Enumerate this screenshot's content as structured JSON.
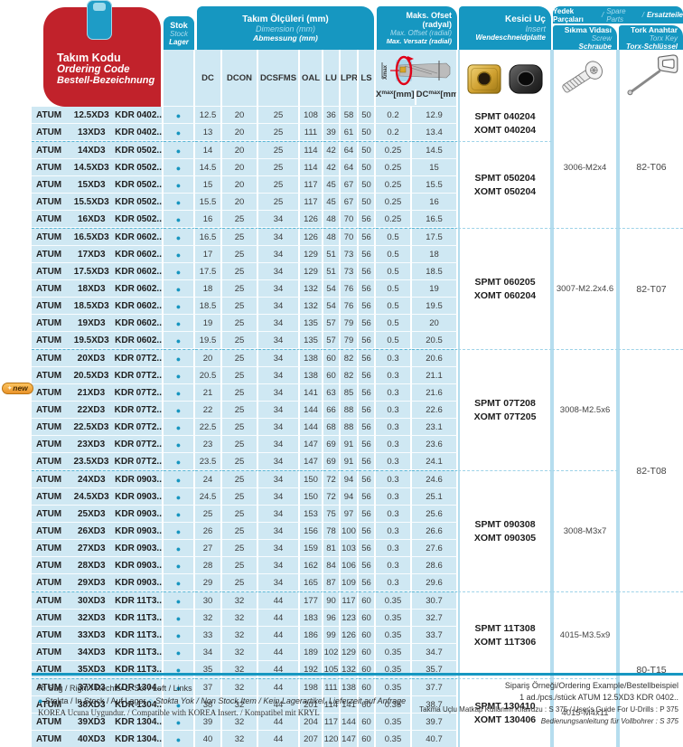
{
  "colors": {
    "teal": "#1697c1",
    "red": "#c1222b",
    "row_blue": "#cfe8f3",
    "dashed_separator": "#58b6d5",
    "insert_gold": "#c89b2a",
    "insert_black": "#2b2b2b",
    "badge_orange": "#e9932a"
  },
  "icons": {
    "stock_dot": "●",
    "in_stock_dot": "●",
    "non_stock_dot": "○",
    "new_spark": "✦"
  },
  "header": {
    "ordering_code": {
      "tr": "Takım Kodu",
      "en": "Ordering Code",
      "de": "Bestell-Bezeichnung"
    },
    "stock": {
      "tr": "Stok",
      "en": "Stock",
      "de": "Lager"
    },
    "dimensions": {
      "tr": "Takım Ölçüleri (mm)",
      "en": "Dimension (mm)",
      "de": "Abmessung (mm)"
    },
    "offset": {
      "tr": "Maks. Ofset (radyal)",
      "en": "Max. Offset (radial)",
      "de": "Max. Versatz (radial)"
    },
    "insert": {
      "tr": "Kesici Uç",
      "en": "Insert",
      "de": "Wendeschneidplatte"
    },
    "spare_parts": {
      "tr": "Yedek Parçaları",
      "sep1": "/",
      "en": "Spare Parts",
      "sep2": "/",
      "de": "Ersatzteile"
    },
    "screw": {
      "tr": "Sıkma Vidası",
      "en": "Screw",
      "de": "Schraube"
    },
    "torx": {
      "tr": "Tork Anahtar",
      "en": "Torx Key",
      "de": "Torx-Schlüssel"
    },
    "columns": [
      "DC",
      "DCON",
      "DCSFMS",
      "OAL",
      "LU",
      "LPR",
      "LS"
    ],
    "xmax": {
      "base": "X",
      "sub": "max",
      "unit": "[mm]"
    },
    "dcmax": {
      "base": "DC",
      "sub": "max",
      "unit": "[mm]"
    },
    "diagram_label": "Xmax"
  },
  "new_badge": {
    "label": "new",
    "row": 19
  },
  "rows": [
    [
      "ATUM",
      "12.5XD3",
      "KDR",
      "0402..",
      "12.5",
      "20",
      "25",
      "108",
      "36",
      "58",
      "50",
      "0.2",
      "12.9"
    ],
    [
      "ATUM",
      "13XD3",
      "KDR",
      "0402..",
      "13",
      "20",
      "25",
      "111",
      "39",
      "61",
      "50",
      "0.2",
      "13.4"
    ],
    [
      "ATUM",
      "14XD3",
      "KDR",
      "0502..",
      "14",
      "20",
      "25",
      "114",
      "42",
      "64",
      "50",
      "0.25",
      "14.5"
    ],
    [
      "ATUM",
      "14.5XD3",
      "KDR",
      "0502..",
      "14.5",
      "20",
      "25",
      "114",
      "42",
      "64",
      "50",
      "0.25",
      "15"
    ],
    [
      "ATUM",
      "15XD3",
      "KDR",
      "0502..",
      "15",
      "20",
      "25",
      "117",
      "45",
      "67",
      "50",
      "0.25",
      "15.5"
    ],
    [
      "ATUM",
      "15.5XD3",
      "KDR",
      "0502..",
      "15.5",
      "20",
      "25",
      "117",
      "45",
      "67",
      "50",
      "0.25",
      "16"
    ],
    [
      "ATUM",
      "16XD3",
      "KDR",
      "0502..",
      "16",
      "25",
      "34",
      "126",
      "48",
      "70",
      "56",
      "0.25",
      "16.5"
    ],
    [
      "ATUM",
      "16.5XD3",
      "KDR",
      "0602..",
      "16.5",
      "25",
      "34",
      "126",
      "48",
      "70",
      "56",
      "0.5",
      "17.5"
    ],
    [
      "ATUM",
      "17XD3",
      "KDR",
      "0602..",
      "17",
      "25",
      "34",
      "129",
      "51",
      "73",
      "56",
      "0.5",
      "18"
    ],
    [
      "ATUM",
      "17.5XD3",
      "KDR",
      "0602..",
      "17.5",
      "25",
      "34",
      "129",
      "51",
      "73",
      "56",
      "0.5",
      "18.5"
    ],
    [
      "ATUM",
      "18XD3",
      "KDR",
      "0602..",
      "18",
      "25",
      "34",
      "132",
      "54",
      "76",
      "56",
      "0.5",
      "19"
    ],
    [
      "ATUM",
      "18.5XD3",
      "KDR",
      "0602..",
      "18.5",
      "25",
      "34",
      "132",
      "54",
      "76",
      "56",
      "0.5",
      "19.5"
    ],
    [
      "ATUM",
      "19XD3",
      "KDR",
      "0602..",
      "19",
      "25",
      "34",
      "135",
      "57",
      "79",
      "56",
      "0.5",
      "20"
    ],
    [
      "ATUM",
      "19.5XD3",
      "KDR",
      "0602..",
      "19.5",
      "25",
      "34",
      "135",
      "57",
      "79",
      "56",
      "0.5",
      "20.5"
    ],
    [
      "ATUM",
      "20XD3",
      "KDR",
      "07T2..",
      "20",
      "25",
      "34",
      "138",
      "60",
      "82",
      "56",
      "0.3",
      "20.6"
    ],
    [
      "ATUM",
      "20.5XD3",
      "KDR",
      "07T2..",
      "20.5",
      "25",
      "34",
      "138",
      "60",
      "82",
      "56",
      "0.3",
      "21.1"
    ],
    [
      "ATUM",
      "21XD3",
      "KDR",
      "07T2..",
      "21",
      "25",
      "34",
      "141",
      "63",
      "85",
      "56",
      "0.3",
      "21.6"
    ],
    [
      "ATUM",
      "22XD3",
      "KDR",
      "07T2..",
      "22",
      "25",
      "34",
      "144",
      "66",
      "88",
      "56",
      "0.3",
      "22.6"
    ],
    [
      "ATUM",
      "22.5XD3",
      "KDR",
      "07T2..",
      "22.5",
      "25",
      "34",
      "144",
      "68",
      "88",
      "56",
      "0.3",
      "23.1"
    ],
    [
      "ATUM",
      "23XD3",
      "KDR",
      "07T2..",
      "23",
      "25",
      "34",
      "147",
      "69",
      "91",
      "56",
      "0.3",
      "23.6"
    ],
    [
      "ATUM",
      "23.5XD3",
      "KDR",
      "07T2..",
      "23.5",
      "25",
      "34",
      "147",
      "69",
      "91",
      "56",
      "0.3",
      "24.1"
    ],
    [
      "ATUM",
      "24XD3",
      "KDR",
      "0903..",
      "24",
      "25",
      "34",
      "150",
      "72",
      "94",
      "56",
      "0.3",
      "24.6"
    ],
    [
      "ATUM",
      "24.5XD3",
      "KDR",
      "0903..",
      "24.5",
      "25",
      "34",
      "150",
      "72",
      "94",
      "56",
      "0.3",
      "25.1"
    ],
    [
      "ATUM",
      "25XD3",
      "KDR",
      "0903..",
      "25",
      "25",
      "34",
      "153",
      "75",
      "97",
      "56",
      "0.3",
      "25.6"
    ],
    [
      "ATUM",
      "26XD3",
      "KDR",
      "0903..",
      "26",
      "25",
      "34",
      "156",
      "78",
      "100",
      "56",
      "0.3",
      "26.6"
    ],
    [
      "ATUM",
      "27XD3",
      "KDR",
      "0903..",
      "27",
      "25",
      "34",
      "159",
      "81",
      "103",
      "56",
      "0.3",
      "27.6"
    ],
    [
      "ATUM",
      "28XD3",
      "KDR",
      "0903..",
      "28",
      "25",
      "34",
      "162",
      "84",
      "106",
      "56",
      "0.3",
      "28.6"
    ],
    [
      "ATUM",
      "29XD3",
      "KDR",
      "0903..",
      "29",
      "25",
      "34",
      "165",
      "87",
      "109",
      "56",
      "0.3",
      "29.6"
    ],
    [
      "ATUM",
      "30XD3",
      "KDR",
      "11T3..",
      "30",
      "32",
      "44",
      "177",
      "90",
      "117",
      "60",
      "0.35",
      "30.7"
    ],
    [
      "ATUM",
      "32XD3",
      "KDR",
      "11T3..",
      "32",
      "32",
      "44",
      "183",
      "96",
      "123",
      "60",
      "0.35",
      "32.7"
    ],
    [
      "ATUM",
      "33XD3",
      "KDR",
      "11T3..",
      "33",
      "32",
      "44",
      "186",
      "99",
      "126",
      "60",
      "0.35",
      "33.7"
    ],
    [
      "ATUM",
      "34XD3",
      "KDR",
      "11T3..",
      "34",
      "32",
      "44",
      "189",
      "102",
      "129",
      "60",
      "0.35",
      "34.7"
    ],
    [
      "ATUM",
      "35XD3",
      "KDR",
      "11T3..",
      "35",
      "32",
      "44",
      "192",
      "105",
      "132",
      "60",
      "0.35",
      "35.7"
    ],
    [
      "ATUM",
      "37XD3",
      "KDR",
      "1304..",
      "37",
      "32",
      "44",
      "198",
      "111",
      "138",
      "60",
      "0.35",
      "37.7"
    ],
    [
      "ATUM",
      "38XD3",
      "KDR",
      "1304..",
      "38",
      "32",
      "44",
      "201",
      "114",
      "141",
      "60",
      "0.35",
      "38.7"
    ],
    [
      "ATUM",
      "39XD3",
      "KDR",
      "1304..",
      "39",
      "32",
      "44",
      "204",
      "117",
      "144",
      "60",
      "0.35",
      "39.7"
    ],
    [
      "ATUM",
      "40XD3",
      "KDR",
      "1304..",
      "40",
      "32",
      "44",
      "207",
      "120",
      "147",
      "60",
      "0.35",
      "40.7"
    ]
  ],
  "insert_groups": [
    {
      "start": 1,
      "span": 2,
      "lines": [
        "SPMT 040204",
        "XOMT 040204"
      ]
    },
    {
      "start": 3,
      "span": 5,
      "lines": [
        "SPMT 050204",
        "XOMT 050204"
      ]
    },
    {
      "start": 8,
      "span": 7,
      "lines": [
        "SPMT 060205",
        "XOMT 060204"
      ]
    },
    {
      "start": 15,
      "span": 7,
      "lines": [
        "SPMT 07T208",
        "XOMT 07T205"
      ]
    },
    {
      "start": 22,
      "span": 7,
      "lines": [
        "SPMT 090308",
        "XOMT 090305"
      ]
    },
    {
      "start": 29,
      "span": 5,
      "lines": [
        "SPMT 11T308",
        "XOMT 11T306"
      ]
    },
    {
      "start": 34,
      "span": 4,
      "lines": [
        "SPMT 130410",
        "XOMT 130406"
      ]
    }
  ],
  "screw_groups": [
    {
      "start": 1,
      "span": 7,
      "label": "3006-M2x4"
    },
    {
      "start": 8,
      "span": 7,
      "label": "3007-M2.2x4.6"
    },
    {
      "start": 15,
      "span": 7,
      "label": "3008-M2.5x6"
    },
    {
      "start": 22,
      "span": 7,
      "label": "3008-M3x7"
    },
    {
      "start": 29,
      "span": 5,
      "label": "4015-M3.5x9"
    },
    {
      "start": 34,
      "span": 4,
      "label": "4015-M4x11"
    }
  ],
  "torx_groups": [
    {
      "start": 1,
      "span": 7,
      "label": "82-T06"
    },
    {
      "start": 8,
      "span": 7,
      "label": "82-T07"
    },
    {
      "start": 15,
      "span": 14,
      "label": "82-T08"
    },
    {
      "start": 29,
      "span": 9,
      "label": "80-T15"
    }
  ],
  "footer": {
    "rl_line": "R: Sağ / Right / Rechts/   L: Sol / Left / Links",
    "in_stock": "Stokta / In Stock / Auf Lager",
    "non_stock": "Stokta Yok / Non Stock Item / Kein Lagerartikel, Lieferzeit auf Anfrage",
    "korea_line": "KOREA Ucuna Uygundur. / Compatible with KOREA Insert. / Kompatibel mit KRYL",
    "example_title": "Sipariş Örneği/Ordering Example/Bestellbeispiel",
    "example_line": "1 ad./pcs./stück  ATUM 12.5XD3 KDR 0402..",
    "guide_line": "Takma Uçlu Matkap Kullanım Kılavuzu : S 375 / User's Guide For U-Drills : P 375",
    "guide_line_de": "Bedienungsanleitung für Vollbohrer : S 375"
  }
}
